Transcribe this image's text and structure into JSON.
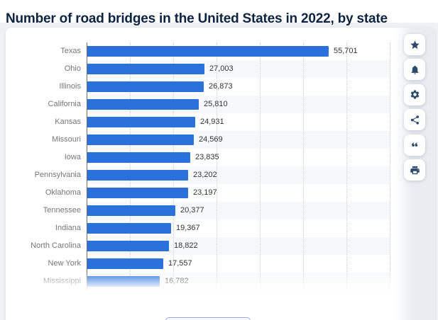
{
  "title": "Number of road bridges in the United States in 2022, by state",
  "toolbar": {
    "buttons": [
      {
        "name": "favorite-button",
        "icon": "star-icon"
      },
      {
        "name": "alert-button",
        "icon": "bell-icon"
      },
      {
        "name": "settings-button",
        "icon": "gear-icon"
      },
      {
        "name": "share-button",
        "icon": "share-icon"
      },
      {
        "name": "cite-button",
        "icon": "quote-icon"
      },
      {
        "name": "print-button",
        "icon": "printer-icon"
      }
    ]
  },
  "chart_data": {
    "type": "bar",
    "orientation": "horizontal",
    "title": "Number of road bridges in the United States in 2022, by state",
    "categories": [
      "Texas",
      "Ohio",
      "Illinois",
      "California",
      "Kansas",
      "Missouri",
      "Iowa",
      "Pennsylvania",
      "Oklahoma",
      "Tennessee",
      "Indiana",
      "North Carolina",
      "New York",
      "Mississippi"
    ],
    "values": [
      55701,
      27003,
      26873,
      25810,
      24931,
      24569,
      23835,
      23202,
      23197,
      20377,
      19367,
      18822,
      17557,
      16782
    ],
    "value_labels": [
      "55,701",
      "27,003",
      "26,873",
      "25,810",
      "24,931",
      "24,569",
      "23,835",
      "23,202",
      "23,197",
      "20,377",
      "19,367",
      "18,822",
      "17,557",
      "16,782"
    ],
    "xlabel": "",
    "ylabel": "",
    "xlim": [
      0,
      70000
    ],
    "gridline_step": 10000,
    "grid": true,
    "legend": false,
    "bar_color": "#2b71dc",
    "row_stripe_color": "#f7f8f9",
    "last_row_faded": true
  },
  "colors": {
    "title_text": "#0d2340",
    "icon": "#2c4a68",
    "category_label": "#767676",
    "value_label": "#333333",
    "gridline": "#cdcdcd",
    "axis": "#6e6e6e",
    "page_background": "#eff1f4",
    "card_background": "#ffffff",
    "bottom_button_border": "#9aa8ea"
  }
}
